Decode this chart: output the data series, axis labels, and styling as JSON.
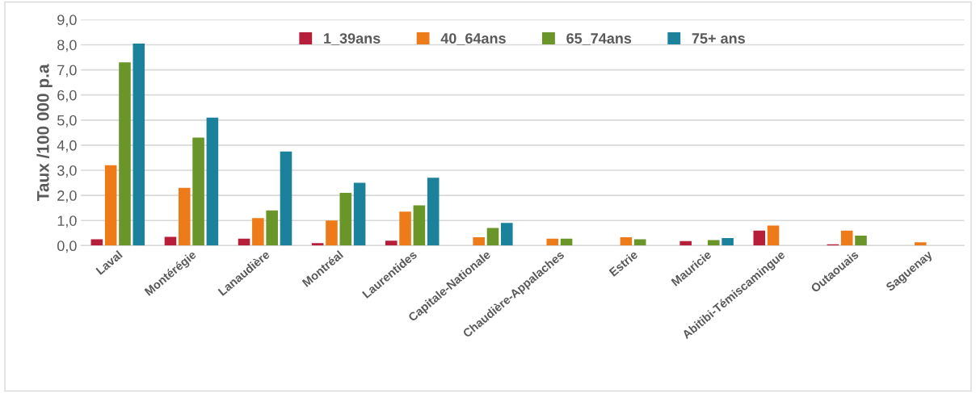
{
  "chart_data": {
    "type": "bar",
    "ylabel": "Taux /100 000 p.a",
    "categories": [
      "Laval",
      "Montérégie",
      "Lanaudière",
      "Montréal",
      "Laurentides",
      "Capitale-Nationale",
      "Chaudière-Appalaches",
      "Estrie",
      "Mauricie",
      "Abitibi-Témiscamingue",
      "Outaouais",
      "Saguenay"
    ],
    "series": [
      {
        "name": "1_39ans",
        "color": "#b61e3a",
        "values": [
          0.25,
          0.35,
          0.28,
          0.1,
          0.2,
          null,
          null,
          null,
          0.18,
          0.6,
          0.05,
          null
        ]
      },
      {
        "name": "40_64ans",
        "color": "#ee7b1a",
        "values": [
          3.2,
          2.3,
          1.1,
          1.0,
          1.35,
          0.33,
          0.28,
          0.33,
          null,
          0.8,
          0.6,
          0.13
        ]
      },
      {
        "name": "65_74ans",
        "color": "#6a9528",
        "values": [
          7.3,
          4.3,
          1.4,
          2.1,
          1.6,
          0.7,
          0.28,
          0.25,
          0.22,
          null,
          0.4,
          null
        ]
      },
      {
        "name": "75+ ans",
        "color": "#1c819b",
        "values": [
          8.05,
          5.1,
          3.75,
          2.5,
          2.7,
          0.9,
          null,
          null,
          0.3,
          null,
          null,
          null
        ]
      }
    ],
    "ylim": [
      0,
      9
    ],
    "yticks": [
      {
        "value": 0,
        "label": "0,0"
      },
      {
        "value": 1,
        "label": "1,0"
      },
      {
        "value": 2,
        "label": "2,0"
      },
      {
        "value": 3,
        "label": "3,0"
      },
      {
        "value": 4,
        "label": "4,0"
      },
      {
        "value": 5,
        "label": "5,0"
      },
      {
        "value": 6,
        "label": "6,0"
      },
      {
        "value": 7,
        "label": "7,0"
      },
      {
        "value": 8,
        "label": "8,0"
      },
      {
        "value": 9,
        "label": "9,0"
      }
    ],
    "grid": "y",
    "legend": "top"
  }
}
